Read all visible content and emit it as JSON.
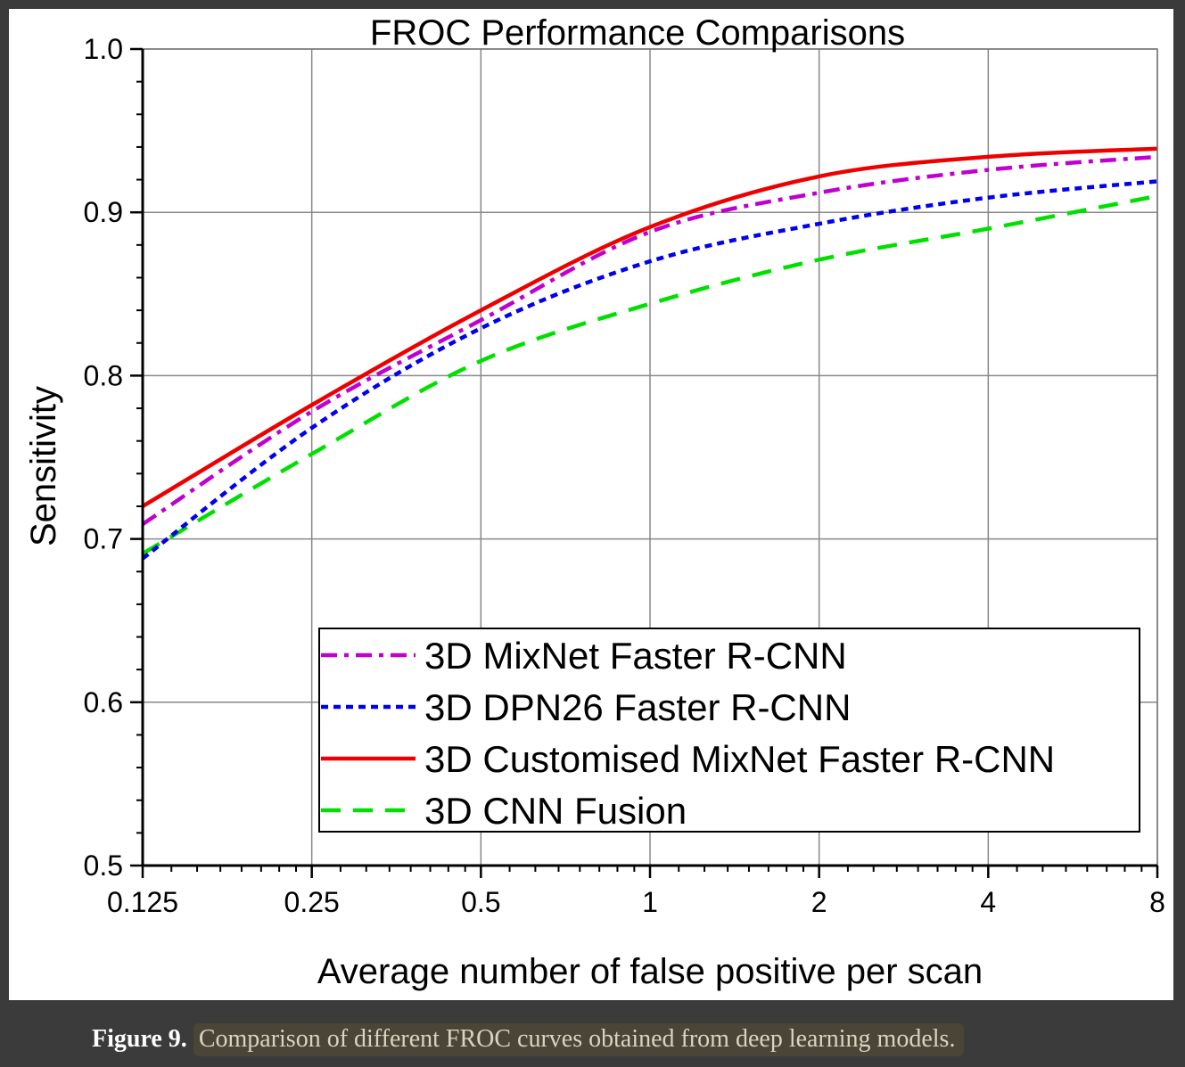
{
  "caption": {
    "label": "Figure 9.",
    "text": "Comparison of different FROC curves obtained from deep learning models."
  },
  "chart_data": {
    "type": "line",
    "title": "FROC Performance Comparisons",
    "xlabel": "Average number of false positive per scan",
    "ylabel": "Sensitivity",
    "x_scale": "log2",
    "xlim": [
      0.125,
      8
    ],
    "ylim": [
      0.5,
      1.0
    ],
    "x_ticks": [
      "0.125",
      "0.25",
      "0.5",
      "1",
      "2",
      "4",
      "8"
    ],
    "x_tick_values": [
      0.125,
      0.25,
      0.5,
      1,
      2,
      4,
      8
    ],
    "y_ticks": [
      "0.5",
      "0.6",
      "0.7",
      "0.8",
      "0.9",
      "1.0"
    ],
    "y_tick_values": [
      0.5,
      0.6,
      0.7,
      0.8,
      0.9,
      1.0
    ],
    "grid": true,
    "legend_position": "bottom-right",
    "x": [
      0.125,
      0.25,
      0.5,
      1,
      2,
      4,
      8
    ],
    "series": [
      {
        "name": "3D MixNet Faster R-CNN",
        "style": "dashdot",
        "color": "#c000d0",
        "values": [
          0.709,
          0.778,
          0.834,
          0.888,
          0.912,
          0.926,
          0.934
        ]
      },
      {
        "name": "3D DPN26 Faster R-CNN",
        "style": "dot",
        "color": "#0000ee",
        "values": [
          0.688,
          0.768,
          0.829,
          0.87,
          0.893,
          0.909,
          0.919
        ]
      },
      {
        "name": "3D Customised MixNet Faster R-CNN",
        "style": "solid",
        "color": "#ee0000",
        "values": [
          0.72,
          0.782,
          0.84,
          0.891,
          0.922,
          0.934,
          0.939
        ]
      },
      {
        "name": "3D CNN Fusion",
        "style": "dash",
        "color": "#00e000",
        "values": [
          0.691,
          0.752,
          0.809,
          0.844,
          0.871,
          0.89,
          0.91
        ]
      }
    ]
  }
}
